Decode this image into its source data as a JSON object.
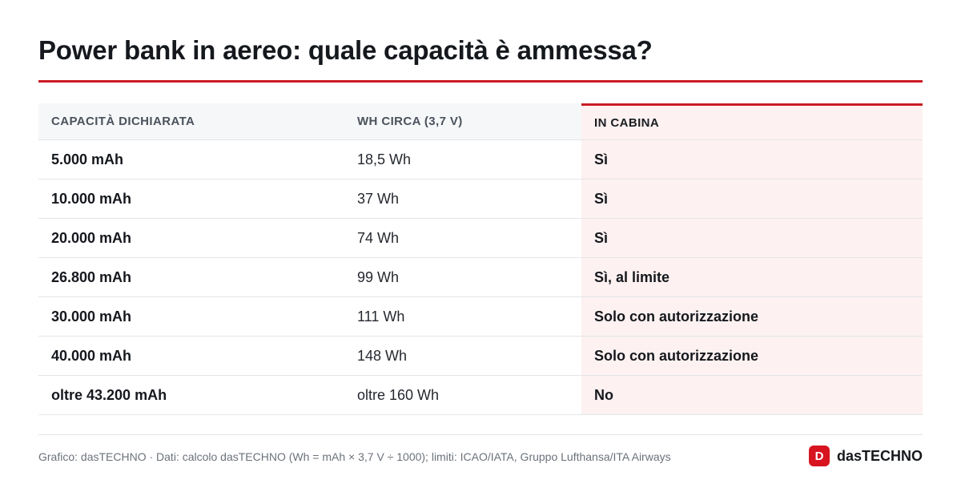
{
  "title": "Power bank in aereo: quale capacità è ammessa?",
  "colors": {
    "accent": "#cc1b22",
    "highlight_column_bg": "#fdf1f1",
    "header_bg": "#f6f7f9"
  },
  "chart_data": {
    "type": "table",
    "title": "Power bank in aereo: quale capacità è ammessa?",
    "columns": [
      "CAPACITÀ DICHIARATA",
      "WH CIRCA (3,7 V)",
      "IN CABINA"
    ],
    "highlighted_column": "IN CABINA",
    "rows": [
      [
        "5.000 mAh",
        "18,5 Wh",
        "Sì"
      ],
      [
        "10.000 mAh",
        "37 Wh",
        "Sì"
      ],
      [
        "20.000 mAh",
        "74 Wh",
        "Sì"
      ],
      [
        "26.800 mAh",
        "99 Wh",
        "Sì, al limite"
      ],
      [
        "30.000 mAh",
        "111 Wh",
        "Solo con autorizzazione"
      ],
      [
        "40.000 mAh",
        "148 Wh",
        "Solo con autorizzazione"
      ],
      [
        "oltre 43.200 mAh",
        "oltre 160 Wh",
        "No"
      ]
    ]
  },
  "footer": {
    "source": "Grafico: dasTECHNO · Dati: calcolo dasTECHNO (Wh = mAh × 3,7 V ÷ 1000); limiti: ICAO/IATA, Gruppo Lufthansa/ITA Airways",
    "brand_mark": "D",
    "brand_name": "dasTECHNO"
  }
}
